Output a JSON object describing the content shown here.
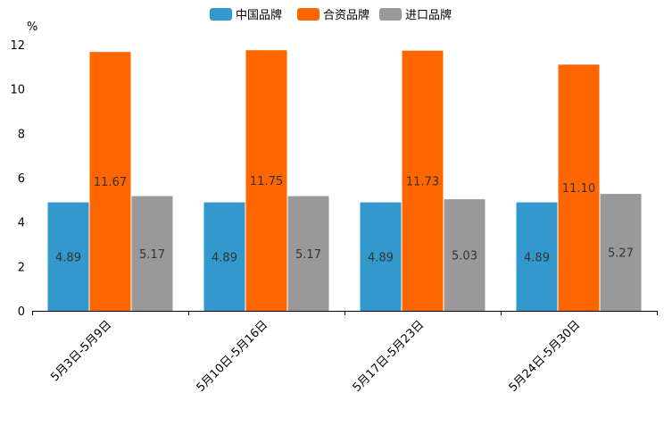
{
  "chart_data": {
    "type": "bar",
    "ylabel": "%",
    "xlabel": "",
    "title": "",
    "ylim": [
      0,
      12
    ],
    "yticks": [
      0,
      2,
      4,
      6,
      8,
      10,
      12
    ],
    "categories": [
      "5月3日-5月9日",
      "5月10日-5月16日",
      "5月17日-5月23日",
      "5月24日-5月30日"
    ],
    "series": [
      {
        "name": "中国品牌",
        "color": "#3399CC",
        "values": [
          4.89,
          4.89,
          4.89,
          4.89
        ]
      },
      {
        "name": "合资品牌",
        "color": "#FF6600",
        "values": [
          11.67,
          11.75,
          11.73,
          11.1
        ]
      },
      {
        "name": "进口品牌",
        "color": "#999999",
        "values": [
          5.17,
          5.17,
          5.03,
          5.27
        ]
      }
    ],
    "legend_position": "top-center",
    "grid": false
  }
}
